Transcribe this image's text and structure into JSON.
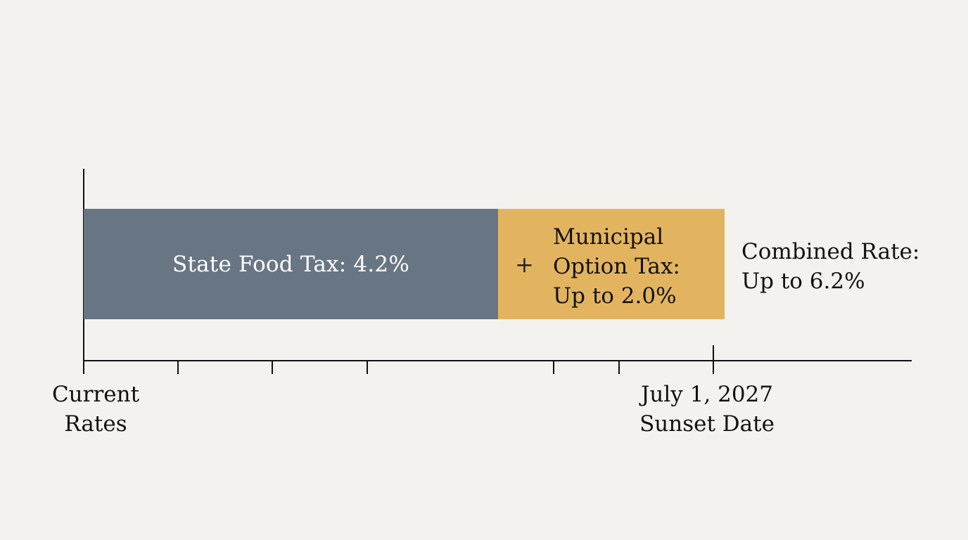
{
  "state_bar": {
    "label": "State Food Tax: 4.2%",
    "rate_percent": 4.2,
    "color": "#687684"
  },
  "municipal_bar": {
    "operator": "+",
    "label_lines": [
      "Municipal",
      "Option Tax:",
      "Up to 2.0%"
    ],
    "rate_percent": 2.0,
    "color": "#e3b45f"
  },
  "combined": {
    "label_lines": [
      "Combined Rate:",
      "Up to 6.2%"
    ],
    "rate_percent": 6.2
  },
  "timeline": {
    "start_label_lines": [
      "Current",
      "Rates"
    ],
    "end_label_lines": [
      "July 1, 2027",
      "Sunset Date"
    ]
  }
}
